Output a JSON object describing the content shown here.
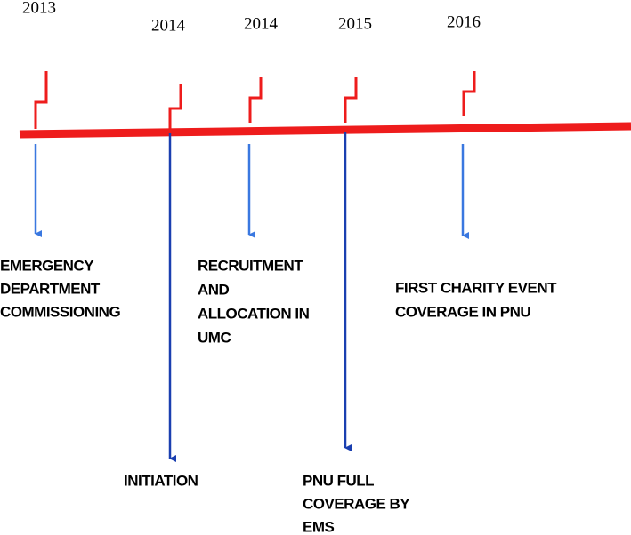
{
  "events": [
    {
      "year": "2013",
      "label": [
        "EMERGENCY",
        "DEPARTMENT",
        "COMMISSIONING"
      ]
    },
    {
      "year": "2014",
      "label": [
        "INITIATION"
      ]
    },
    {
      "year": "2014",
      "label": [
        "RECRUITMENT",
        "AND",
        "ALLOCATION IN",
        "UMC"
      ]
    },
    {
      "year": "2015",
      "label": [
        "PNU FULL",
        "COVERAGE BY",
        "EMS"
      ]
    },
    {
      "year": "2016",
      "label": [
        "FIRST CHARITY EVENT",
        "COVERAGE IN PNU"
      ]
    }
  ]
}
